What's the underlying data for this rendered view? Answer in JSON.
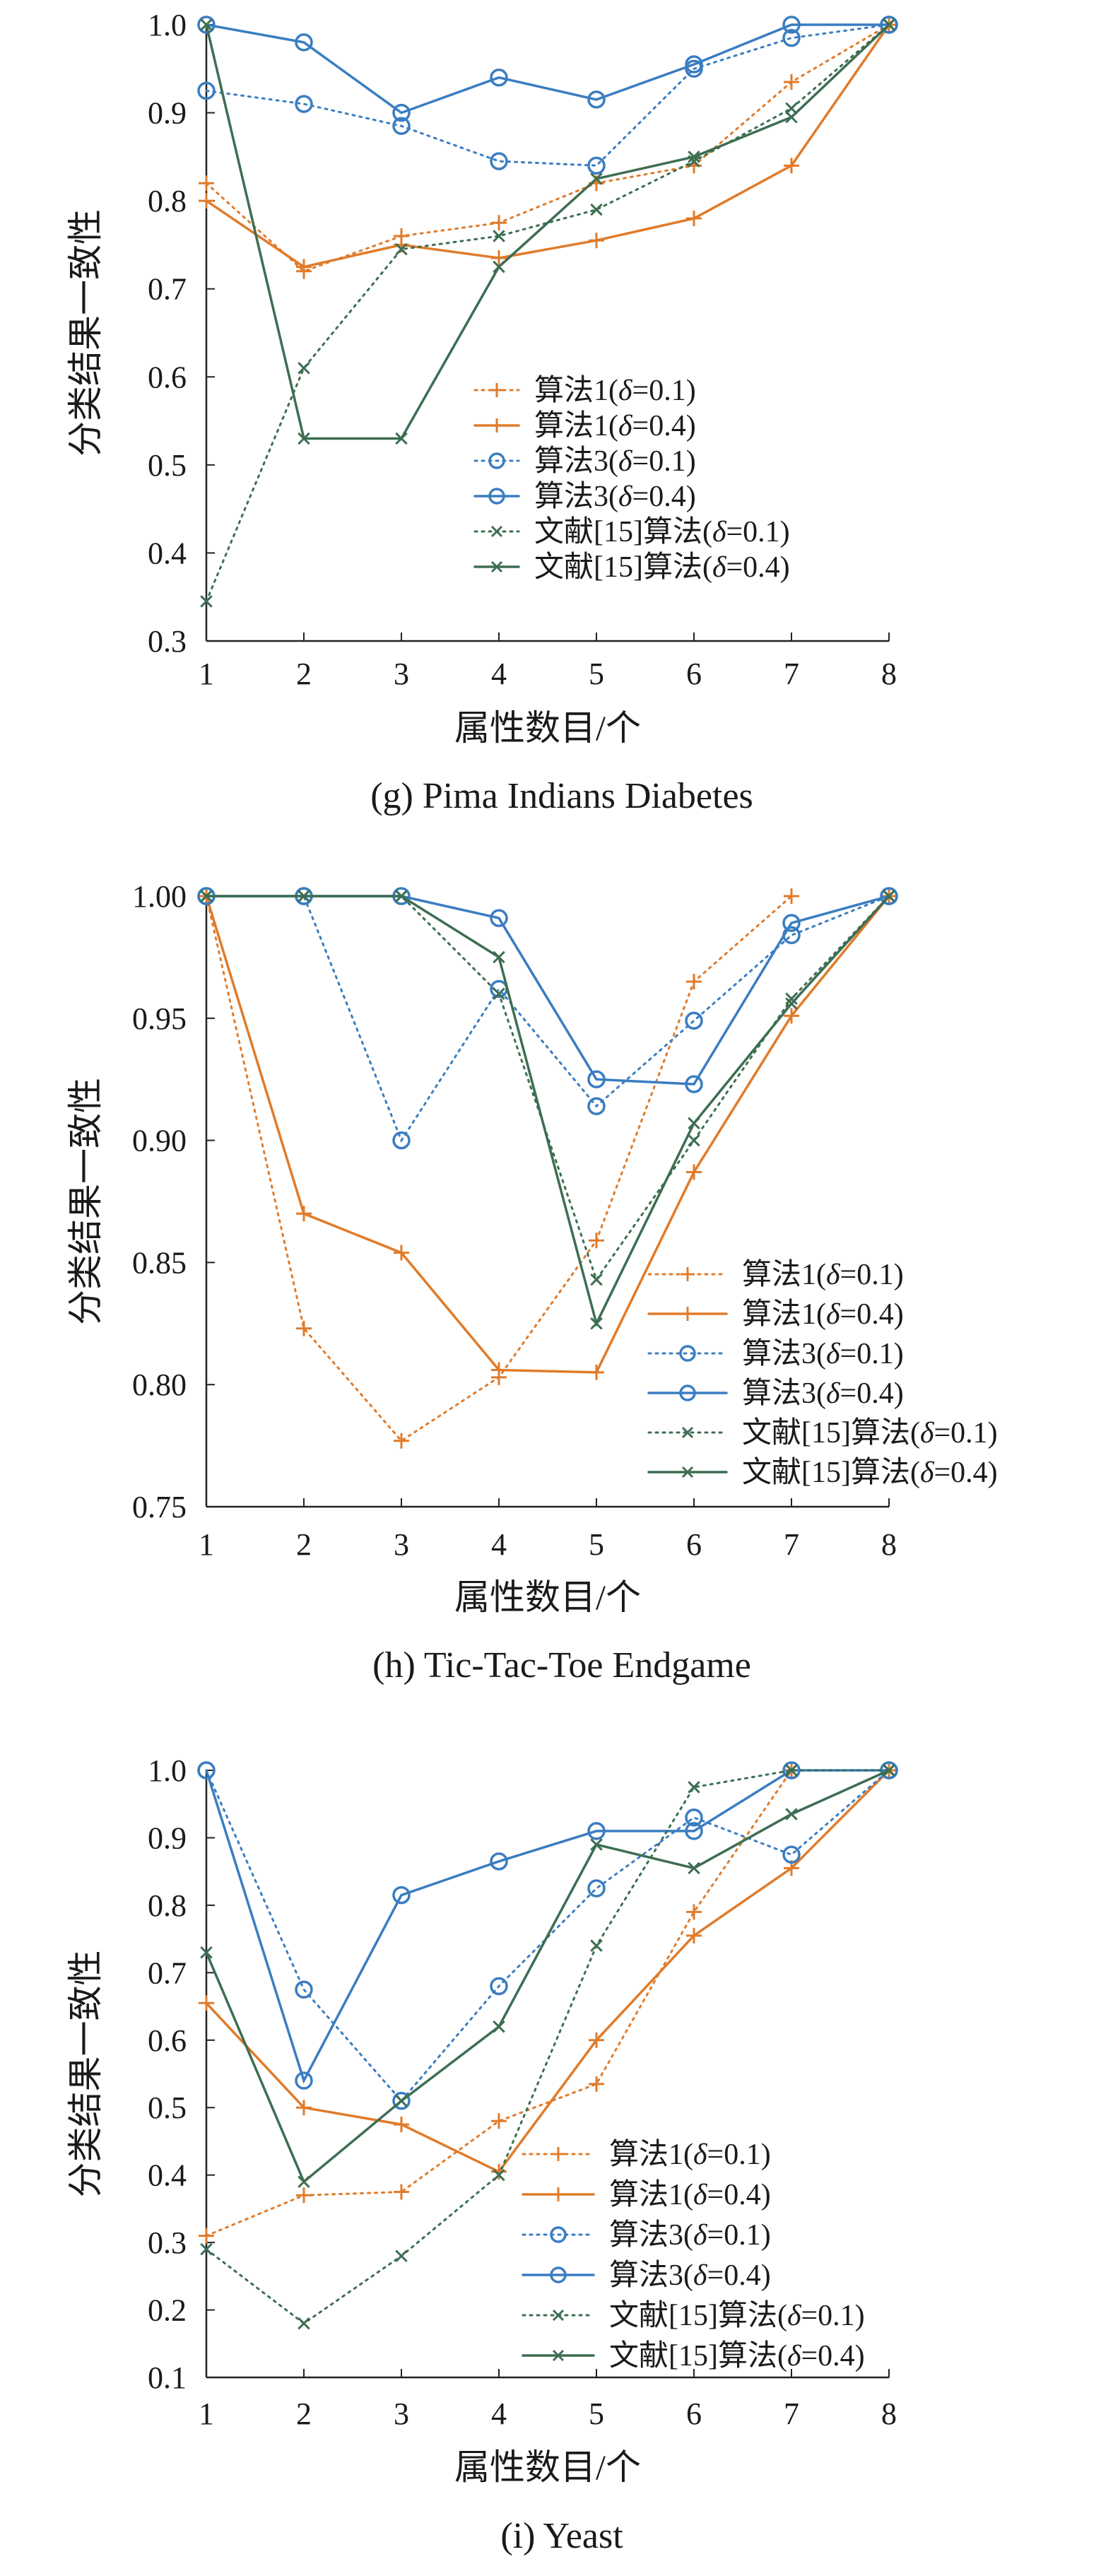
{
  "chart_data": [
    {
      "type": "line",
      "title": "(g) Pima Indians Diabetes",
      "xlabel": "属性数目/个",
      "ylabel": "分类结果一致性",
      "x": [
        1,
        2,
        3,
        4,
        5,
        6,
        7,
        8
      ],
      "xlim": [
        1,
        8
      ],
      "ylim": [
        0.3,
        1.0
      ],
      "yticks": [
        0.3,
        0.4,
        0.5,
        0.6,
        0.7,
        0.8,
        0.9,
        1.0
      ],
      "ytick_labels": [
        "0.3",
        "0.4",
        "0.5",
        "0.6",
        "0.7",
        "0.8",
        "0.9",
        "1.0"
      ],
      "legend_position": "center",
      "series": [
        {
          "prefix": "算法1(",
          "suffix": "=0.1)",
          "color": "#e07b2a",
          "dashed": true,
          "marker": "plus",
          "values": [
            0.82,
            0.72,
            0.76,
            0.775,
            0.82,
            0.84,
            0.935,
            1.0
          ]
        },
        {
          "prefix": "算法1(",
          "suffix": "=0.4)",
          "color": "#e07b2a",
          "dashed": false,
          "marker": "plus",
          "values": [
            0.8,
            0.725,
            0.75,
            0.735,
            0.755,
            0.78,
            0.84,
            1.0
          ]
        },
        {
          "prefix": "算法3(",
          "suffix": "=0.1)",
          "color": "#3a7dc1",
          "dashed": true,
          "marker": "circle",
          "values": [
            0.925,
            0.91,
            0.885,
            0.845,
            0.84,
            0.95,
            0.985,
            1.0
          ]
        },
        {
          "prefix": "算法3(",
          "suffix": "=0.4)",
          "color": "#3a7dc1",
          "dashed": false,
          "marker": "circle",
          "values": [
            1.0,
            0.98,
            0.9,
            0.94,
            0.915,
            0.955,
            1.0,
            1.0
          ]
        },
        {
          "prefix": "文献[15]算法(",
          "suffix": "=0.1)",
          "color": "#3d6e52",
          "dashed": true,
          "marker": "x",
          "values": [
            0.345,
            0.61,
            0.745,
            0.76,
            0.79,
            0.845,
            0.905,
            1.0
          ]
        },
        {
          "prefix": "文献[15]算法(",
          "suffix": "=0.4)",
          "color": "#3d6e52",
          "dashed": false,
          "marker": "x",
          "values": [
            1.0,
            0.53,
            0.53,
            0.725,
            0.825,
            0.85,
            0.895,
            1.0
          ]
        }
      ]
    },
    {
      "type": "line",
      "title": "(h) Tic-Tac-Toe Endgame",
      "xlabel": "属性数目/个",
      "ylabel": "分类结果一致性",
      "x": [
        1,
        2,
        3,
        4,
        5,
        6,
        7,
        8
      ],
      "xlim": [
        1,
        8
      ],
      "ylim": [
        0.75,
        1.0
      ],
      "yticks": [
        0.75,
        0.8,
        0.85,
        0.9,
        0.95,
        1.0
      ],
      "ytick_labels": [
        "0.75",
        "0.80",
        "0.85",
        "0.90",
        "0.95",
        "1.00"
      ],
      "legend_position": "bottom-right",
      "series": [
        {
          "prefix": "算法1(",
          "suffix": "=0.1)",
          "color": "#e07b2a",
          "dashed": true,
          "marker": "plus",
          "values": [
            1.0,
            0.823,
            0.777,
            0.803,
            0.859,
            0.965,
            1.0,
            null
          ]
        },
        {
          "prefix": "算法1(",
          "suffix": "=0.4)",
          "color": "#e07b2a",
          "dashed": false,
          "marker": "plus",
          "values": [
            1.0,
            0.87,
            0.854,
            0.806,
            0.805,
            0.887,
            0.951,
            1.0
          ]
        },
        {
          "prefix": "算法3(",
          "suffix": "=0.1)",
          "color": "#3a7dc1",
          "dashed": true,
          "marker": "circle",
          "values": [
            1.0,
            1.0,
            0.9,
            0.962,
            0.914,
            0.949,
            0.984,
            1.0
          ]
        },
        {
          "prefix": "算法3(",
          "suffix": "=0.4)",
          "color": "#3a7dc1",
          "dashed": false,
          "marker": "circle",
          "values": [
            1.0,
            1.0,
            1.0,
            0.991,
            0.925,
            0.923,
            0.989,
            1.0
          ]
        },
        {
          "prefix": "文献[15]算法(",
          "suffix": "=0.1)",
          "color": "#3d6e52",
          "dashed": true,
          "marker": "x",
          "values": [
            1.0,
            1.0,
            1.0,
            0.96,
            0.843,
            0.9,
            0.958,
            1.0
          ]
        },
        {
          "prefix": "文献[15]算法(",
          "suffix": "=0.4)",
          "color": "#3d6e52",
          "dashed": false,
          "marker": "x",
          "values": [
            1.0,
            1.0,
            1.0,
            0.975,
            0.825,
            0.907,
            0.956,
            1.0
          ]
        }
      ]
    },
    {
      "type": "line",
      "title": "(i) Yeast",
      "xlabel": "属性数目/个",
      "ylabel": "分类结果一致性",
      "x": [
        1,
        2,
        3,
        4,
        5,
        6,
        7,
        8
      ],
      "xlim": [
        1,
        8
      ],
      "ylim": [
        0.1,
        1.0
      ],
      "yticks": [
        0.1,
        0.2,
        0.3,
        0.4,
        0.5,
        0.6,
        0.7,
        0.8,
        0.9,
        1.0
      ],
      "ytick_labels": [
        "0.1",
        "0.2",
        "0.3",
        "0.4",
        "0.5",
        "0.6",
        "0.7",
        "0.8",
        "0.9",
        "1.0"
      ],
      "legend_position": "bottom-right",
      "series": [
        {
          "prefix": "算法1(",
          "suffix": "=0.1)",
          "color": "#e07b2a",
          "dashed": true,
          "marker": "plus",
          "values": [
            0.31,
            0.37,
            0.375,
            0.48,
            0.535,
            0.79,
            1.0,
            1.0
          ]
        },
        {
          "prefix": "算法1(",
          "suffix": "=0.4)",
          "color": "#e07b2a",
          "dashed": false,
          "marker": "plus",
          "values": [
            0.655,
            0.5,
            0.475,
            0.405,
            0.6,
            0.755,
            0.855,
            1.0
          ]
        },
        {
          "prefix": "算法3(",
          "suffix": "=0.1)",
          "color": "#3a7dc1",
          "dashed": true,
          "marker": "circle",
          "values": [
            1.0,
            0.675,
            0.51,
            0.68,
            0.825,
            0.93,
            0.875,
            1.0
          ]
        },
        {
          "prefix": "算法3(",
          "suffix": "=0.4)",
          "color": "#3a7dc1",
          "dashed": false,
          "marker": "circle",
          "values": [
            1.0,
            0.54,
            0.815,
            0.865,
            0.91,
            0.91,
            1.0,
            1.0
          ]
        },
        {
          "prefix": "文献[15]算法(",
          "suffix": "=0.1)",
          "color": "#3d6e52",
          "dashed": true,
          "marker": "x",
          "values": [
            0.29,
            0.18,
            0.28,
            0.4,
            0.74,
            0.975,
            1.0,
            1.0
          ]
        },
        {
          "prefix": "文献[15]算法(",
          "suffix": "=0.4)",
          "color": "#3d6e52",
          "dashed": false,
          "marker": "x",
          "values": [
            0.73,
            0.39,
            0.51,
            0.62,
            0.89,
            0.855,
            0.935,
            1.0
          ]
        }
      ]
    }
  ],
  "legend_symbol": "δ"
}
